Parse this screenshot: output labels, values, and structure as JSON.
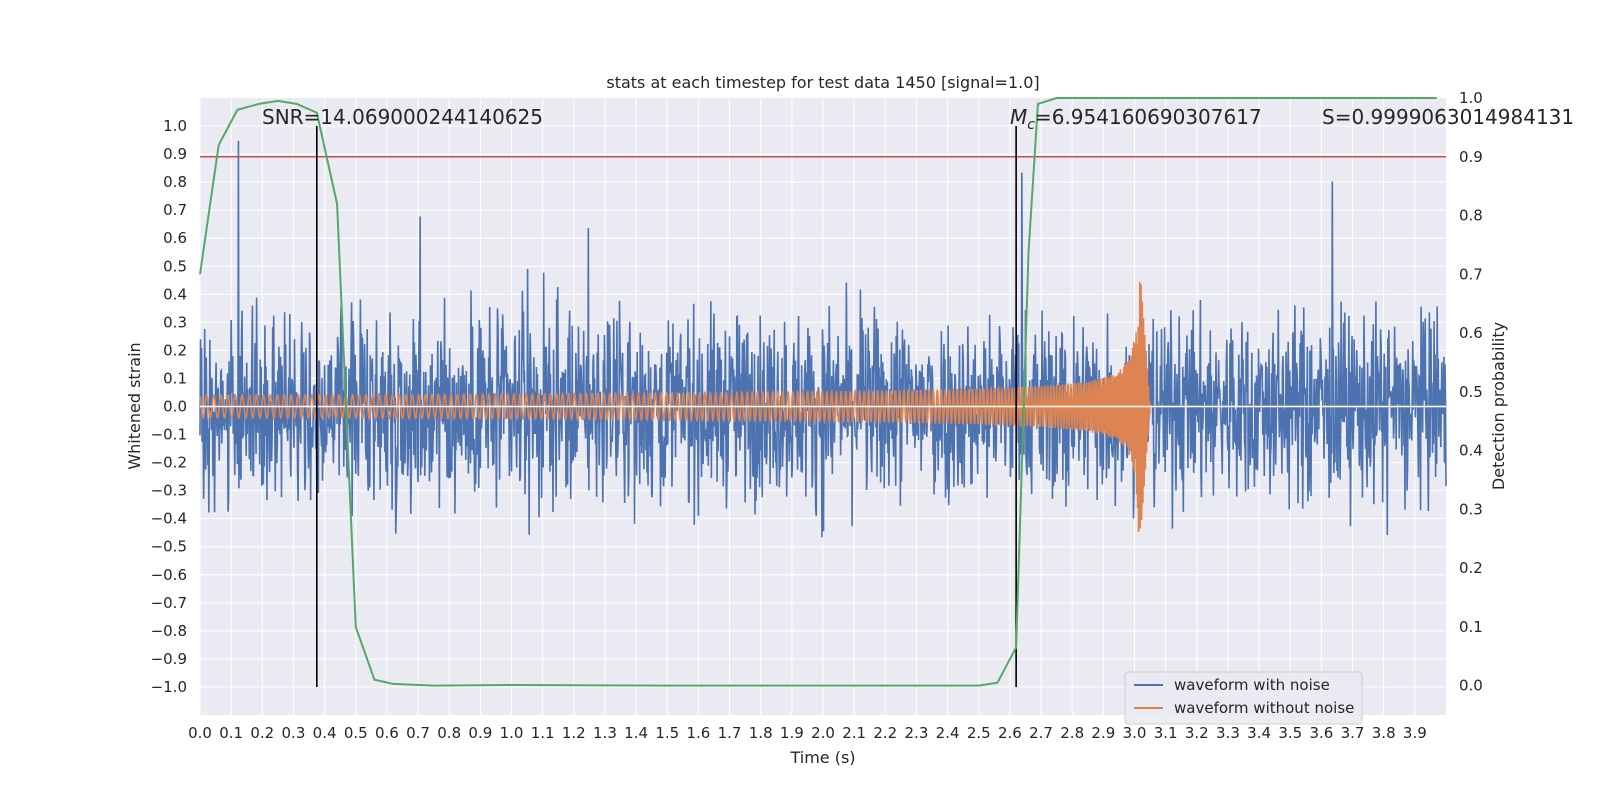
{
  "chart_data": {
    "type": "line",
    "title": "stats at each timestep for test data 1450 [signal=1.0]",
    "xlabel": "Time (s)",
    "ylabel": "Whitened strain",
    "y2label": "Detection probability",
    "xlim": [
      0.0,
      4.0
    ],
    "ylim": [
      -1.1,
      1.1
    ],
    "y2lim": [
      -0.05,
      1.0
    ],
    "x_ticks": [
      "0.0",
      "0.1",
      "0.2",
      "0.3",
      "0.4",
      "0.5",
      "0.6",
      "0.7",
      "0.8",
      "0.9",
      "1.0",
      "1.1",
      "1.2",
      "1.3",
      "1.4",
      "1.5",
      "1.6",
      "1.7",
      "1.8",
      "1.9",
      "2.0",
      "2.1",
      "2.2",
      "2.3",
      "2.4",
      "2.5",
      "2.6",
      "2.7",
      "2.8",
      "2.9",
      "3.0",
      "3.1",
      "3.2",
      "3.3",
      "3.4",
      "3.5",
      "3.6",
      "3.7",
      "3.8",
      "3.9"
    ],
    "y_ticks": [
      "1.0",
      "0.9",
      "0.8",
      "0.7",
      "0.6",
      "0.5",
      "0.4",
      "0.3",
      "0.2",
      "0.1",
      "0.0",
      "−0.1",
      "−0.2",
      "−0.3",
      "−0.4",
      "−0.5",
      "−0.6",
      "−0.7",
      "−0.8",
      "−0.9",
      "−1.0"
    ],
    "y2_ticks": [
      "1.0",
      "0.9",
      "0.8",
      "0.7",
      "0.6",
      "0.5",
      "0.4",
      "0.3",
      "0.2",
      "0.1",
      "0.0"
    ],
    "annotations": {
      "snr": "SNR=14.069000244140625",
      "mc_symbol": "M",
      "mc_sub": "c",
      "mc_value": "=6.954160690307617",
      "s": "S=0.9999063014984131"
    },
    "series": [
      {
        "name": "waveform with noise",
        "color": "#4c72b0",
        "kind": "noise",
        "amplitude": 0.3,
        "spike_max": 1.0
      },
      {
        "name": "waveform without noise",
        "color": "#dd8452",
        "kind": "chirp",
        "merger_time": 3.02,
        "ringdown_end": 3.05,
        "peak_amplitude": 0.45,
        "base_amplitude": 0.04
      },
      {
        "name": "detection probability",
        "color": "#55a868",
        "axis": "right",
        "x": [
          0.0,
          0.06,
          0.12,
          0.19,
          0.25,
          0.31,
          0.375,
          0.44,
          0.5,
          0.56,
          0.62,
          0.75,
          1.0,
          1.5,
          2.0,
          2.5,
          2.56,
          2.62,
          2.66,
          2.69,
          2.75,
          3.0,
          3.5,
          3.97
        ],
        "y": [
          0.7,
          0.92,
          0.98,
          0.99,
          0.995,
          0.99,
          0.975,
          0.82,
          0.1,
          0.01,
          0.003,
          0.0,
          0.001,
          0.0,
          0.0,
          0.0,
          0.005,
          0.065,
          0.74,
          0.99,
          1.0,
          1.0,
          1.0,
          1.0
        ]
      }
    ],
    "hlines": [
      {
        "name": "threshold",
        "axis": "right",
        "y": 0.9,
        "color": "#c44e52"
      },
      {
        "name": "zero-line",
        "axis": "left",
        "y": 0.0,
        "color": "#ffffff"
      }
    ],
    "vlines": [
      {
        "name": "left-marker",
        "x": 0.375,
        "y_from": -1.0,
        "y_to": 1.0,
        "color": "#000000"
      },
      {
        "name": "right-marker",
        "x": 2.62,
        "y_from": -1.0,
        "y_to": 1.0,
        "color": "#000000"
      }
    ],
    "legend": {
      "position": "lower-right",
      "entries": [
        "waveform with noise",
        "waveform without noise"
      ]
    },
    "grid": true,
    "background": "#eaeaf2"
  }
}
